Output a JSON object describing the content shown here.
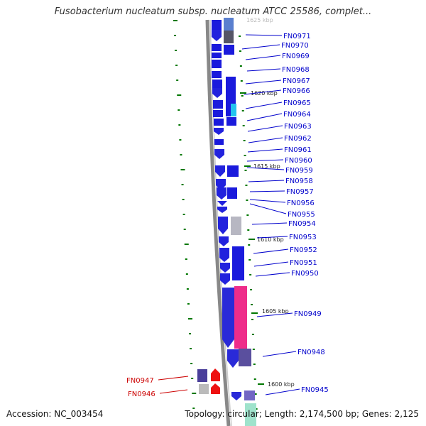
{
  "title": "Fusobacterium nucleatum subsp. nucleatum ATCC 25586, complet...",
  "footer": {
    "accession": "Accession: NC_003454",
    "summary": "Topology: circular; Length: 2,174,500 bp; Genes: 2,125"
  },
  "colors": {
    "gene_label": "#0000cc",
    "gene_label_reverse": "#cc0000",
    "tick": "#007700",
    "backbone": "#888888"
  },
  "scale_marks": [
    {
      "label": "1625 kbp",
      "faded": true
    },
    {
      "label": "1620 kbp"
    },
    {
      "label": "1615 kbp"
    },
    {
      "label": "1610 kbp"
    },
    {
      "label": "1605 kbp"
    },
    {
      "label": "1600 kbp"
    }
  ],
  "genes": [
    {
      "label": "FN0971",
      "strand": "forward"
    },
    {
      "label": "FN0970",
      "strand": "forward"
    },
    {
      "label": "FN0969",
      "strand": "forward"
    },
    {
      "label": "FN0968",
      "strand": "forward"
    },
    {
      "label": "FN0967",
      "strand": "forward"
    },
    {
      "label": "FN0966",
      "strand": "forward"
    },
    {
      "label": "FN0965",
      "strand": "forward"
    },
    {
      "label": "FN0964",
      "strand": "forward"
    },
    {
      "label": "FN0963",
      "strand": "forward"
    },
    {
      "label": "FN0962",
      "strand": "forward"
    },
    {
      "label": "FN0961",
      "strand": "forward"
    },
    {
      "label": "FN0960",
      "strand": "forward"
    },
    {
      "label": "FN0959",
      "strand": "forward"
    },
    {
      "label": "FN0958",
      "strand": "forward"
    },
    {
      "label": "FN0957",
      "strand": "forward"
    },
    {
      "label": "FN0956",
      "strand": "forward"
    },
    {
      "label": "FN0955",
      "strand": "forward"
    },
    {
      "label": "FN0954",
      "strand": "forward"
    },
    {
      "label": "FN0953",
      "strand": "forward"
    },
    {
      "label": "FN0952",
      "strand": "forward"
    },
    {
      "label": "FN0951",
      "strand": "forward"
    },
    {
      "label": "FN0950",
      "strand": "forward"
    },
    {
      "label": "FN0949",
      "strand": "forward"
    },
    {
      "label": "FN0948",
      "strand": "forward"
    },
    {
      "label": "FN0947",
      "strand": "reverse"
    },
    {
      "label": "FN0946",
      "strand": "reverse"
    },
    {
      "label": "FN0945",
      "strand": "forward"
    }
  ]
}
